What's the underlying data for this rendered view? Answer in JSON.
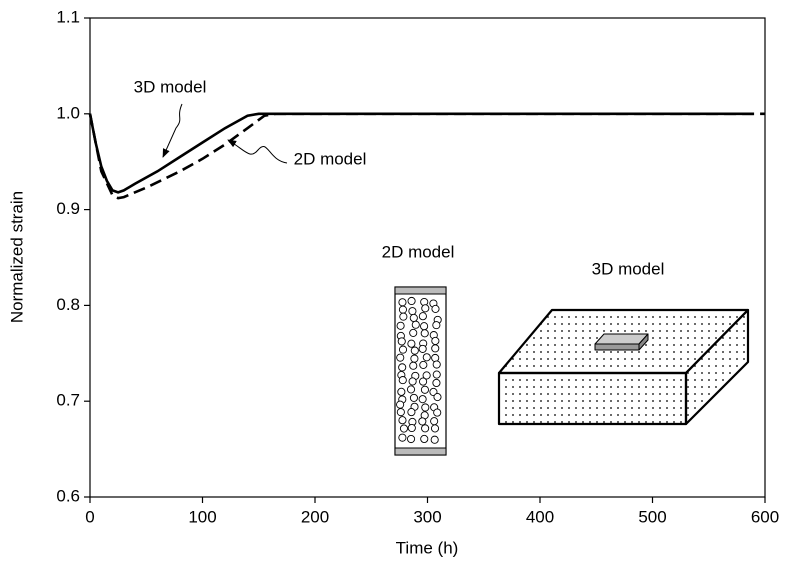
{
  "chart_data": {
    "type": "line",
    "xlabel": "Time (h)",
    "ylabel": "Normalized strain",
    "xlim": [
      0,
      600
    ],
    "xticks": [
      0,
      100,
      200,
      300,
      400,
      500,
      600
    ],
    "ylim": [
      0.6,
      1.1
    ],
    "yticks": [
      0.6,
      0.7,
      0.8,
      0.9,
      {
        "value": 1,
        "label": "1.0"
      },
      1.1
    ],
    "series": [
      {
        "name": "3D model",
        "color": "#000000",
        "line_style": "solid",
        "x": [
          0,
          5,
          10,
          15,
          20,
          25,
          30,
          40,
          60,
          80,
          100,
          120,
          140,
          150,
          200,
          300,
          400,
          500,
          590
        ],
        "values": [
          1.0,
          0.97,
          0.945,
          0.93,
          0.92,
          0.918,
          0.92,
          0.927,
          0.94,
          0.955,
          0.97,
          0.985,
          0.998,
          1.0,
          1.0,
          1.0,
          1.0,
          1.0,
          1.0
        ]
      },
      {
        "name": "2D model",
        "color": "#000000",
        "line_style": "dashed",
        "x": [
          0,
          10,
          20,
          25,
          30,
          50,
          80,
          100,
          120,
          140,
          155,
          165,
          200,
          300,
          400,
          500,
          600
        ],
        "values": [
          1.0,
          0.94,
          0.915,
          0.912,
          0.913,
          0.923,
          0.94,
          0.953,
          0.968,
          0.985,
          0.998,
          1.0,
          1.0,
          1.0,
          1.0,
          1.0,
          1.0
        ]
      }
    ],
    "annotations": [
      "2D model",
      "3D model"
    ]
  }
}
